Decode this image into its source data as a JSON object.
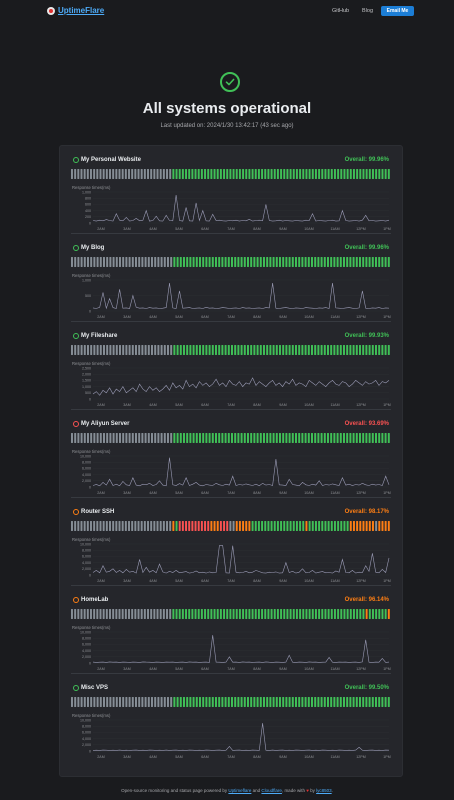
{
  "brand": {
    "name": "UptimeFlare"
  },
  "nav": {
    "github": "GitHub",
    "blog": "Blog",
    "email": "Email Me"
  },
  "hero": {
    "title": "All systems operational",
    "updated": "Last updated on: 2024/1/30 13:42:17 (43 sec ago)"
  },
  "chart_axis_label": "Response times(ms)",
  "time_ticks": [
    "2AM",
    "3AM",
    "4AM",
    "5AM",
    "6AM",
    "7AM",
    "8AM",
    "9AM",
    "10AM",
    "11AM",
    "12PM",
    "1PM"
  ],
  "colors": {
    "up": "#40c057",
    "down": "#fa5252",
    "warn": "#fd7e14",
    "unknown": "#868e96",
    "line": "#9a9bb5"
  },
  "monitors": [
    {
      "name": "My Personal Website",
      "overall": "Overall: 99.96%",
      "status": "up",
      "yticks": [
        "1,000",
        "800",
        "600",
        "400",
        "200",
        "0"
      ],
      "bars": "nnnnnnnnnnnnnnnnnnnnnnnnnnnnnnnnuuuuuuuuuuuuuuuuuuuuuuuuuuuuuuuuuuuuuuuuuuuuuuuuuuuuuuuuuuuuuuuuuuuuu",
      "response_times": [
        80,
        60,
        90,
        70,
        110,
        80,
        60,
        300,
        90,
        70,
        180,
        60,
        80,
        150,
        70,
        90,
        400,
        60,
        80,
        220,
        70,
        60,
        250,
        80,
        70,
        900,
        80,
        60,
        500,
        70,
        60,
        650,
        80,
        400,
        70,
        60,
        280,
        80,
        90,
        70,
        60,
        80,
        70,
        90,
        60,
        80,
        70,
        120,
        60,
        80,
        90,
        70,
        600,
        80,
        60,
        70,
        90,
        60,
        80,
        70,
        60,
        80,
        70,
        60,
        90,
        80,
        300,
        60,
        80,
        70,
        60,
        80,
        90,
        60,
        70,
        400,
        80,
        60,
        70,
        80,
        60,
        90,
        250,
        70,
        80,
        60,
        70,
        80,
        60,
        90
      ]
    },
    {
      "name": "My Blog",
      "overall": "Overall: 99.96%",
      "status": "up",
      "yticks": [
        "1,000",
        "500",
        "0"
      ],
      "bars": "nnnnnnnnnnnnnnnnnnnnnnnnnnnnnnnnuuuuuuuuuuuuuuuuuuuuuuuuuuuuuuuuuuuuuuuuuuuuuuuuuuuuuuuuuuuuuuuuuuuu",
      "response_times": [
        100,
        80,
        120,
        600,
        90,
        400,
        110,
        80,
        700,
        90,
        100,
        80,
        500,
        120,
        90,
        100,
        80,
        110,
        90,
        100,
        80,
        90,
        110,
        900,
        100,
        80,
        650,
        90,
        100,
        110,
        80,
        90,
        100,
        80,
        120,
        90,
        100,
        80,
        90,
        110,
        100,
        80,
        90,
        100,
        80,
        110,
        90,
        100,
        80,
        90,
        100,
        80,
        110,
        100,
        900,
        90,
        80,
        100,
        110,
        90,
        80,
        100,
        90,
        80,
        110,
        100,
        90,
        80,
        100,
        90,
        110,
        80,
        900,
        100,
        90,
        80,
        100,
        110,
        90,
        80,
        100,
        650,
        90,
        80,
        100,
        90,
        110,
        80,
        100,
        90
      ]
    },
    {
      "name": "My Fileshare",
      "overall": "Overall: 99.93%",
      "status": "up",
      "yticks": [
        "2,500",
        "2,000",
        "1,500",
        "1,000",
        "500",
        "0"
      ],
      "bars": "nnnnnnnnnnnnnnnnnnnnnnnnnnnnnnnnuuuuuuuuuuuuuuuuuuuuuuuuuuuuuuuuuuuuuuuuuuuuuuuuuuuuuuuuuuuuuuuuuuuu",
      "response_times": [
        400,
        600,
        300,
        700,
        500,
        900,
        400,
        800,
        600,
        1000,
        500,
        700,
        900,
        600,
        1200,
        800,
        600,
        1000,
        700,
        900,
        600,
        800,
        1100,
        700,
        1300,
        900,
        1100,
        800,
        1500,
        1000,
        1200,
        900,
        1400,
        1100,
        1300,
        1000,
        1200,
        1600,
        1100,
        1300,
        1000,
        1500,
        1200,
        1100,
        1400,
        1000,
        1300,
        1200,
        1700,
        1100,
        1400,
        1200,
        1000,
        1300,
        1500,
        1100,
        1300,
        1000,
        1400,
        1200,
        1600,
        1100,
        1300,
        1200,
        1000,
        1500,
        1300,
        1100,
        1400,
        1200,
        1000,
        1300,
        1500,
        1200,
        1100,
        1400,
        1300,
        1000,
        1200,
        1500,
        1300,
        1100,
        1400,
        1200,
        1300,
        1500,
        1100,
        1400,
        1300,
        1500
      ]
    },
    {
      "name": "My Aliyun Server",
      "overall": "Overall: 93.69%",
      "status": "down",
      "yticks": [
        "10,000",
        "8,000",
        "6,000",
        "4,000",
        "2,000",
        "0"
      ],
      "bars": "nnnnnnnnnnnnnnnnnnnnnnnnnnnnnnnnuuuuuuuuuuuuuuuuuuuuuuuuuuuuuuuuuuuuuuuuuuuuuuuuuuuuuuuuuuuuuuuuuuuu",
      "response_times": [
        500,
        800,
        400,
        1500,
        600,
        2500,
        500,
        900,
        400,
        1800,
        700,
        500,
        3000,
        600,
        400,
        900,
        700,
        1200,
        500,
        800,
        2000,
        600,
        400,
        9500,
        700,
        500,
        1100,
        600,
        3000,
        500,
        900,
        1500,
        600,
        400,
        800,
        600,
        500,
        1200,
        700,
        500,
        900,
        600,
        3500,
        500,
        800,
        600,
        1000,
        700,
        500,
        900,
        400,
        1200,
        600,
        800,
        500,
        9000,
        700,
        600,
        500,
        2500,
        800,
        600,
        400,
        1500,
        700,
        500,
        900,
        600,
        2000,
        500,
        800,
        600,
        1000,
        700,
        500,
        3000,
        600,
        900,
        500,
        800,
        600,
        1200,
        700,
        500,
        900,
        600,
        800,
        500,
        3500,
        700
      ]
    },
    {
      "name": "Router SSH",
      "overall": "Overall: 98.17%",
      "status": "warn",
      "yticks": [
        "10,000",
        "8,000",
        "6,000",
        "4,000",
        "2,000",
        "0"
      ],
      "bars": "nnnnnnnnnnnnnnnnnnnnnnnnnnnnnnnnouddddddddddooodddnnooooouuuuuuuuuuuuuuuuuouuuuuuuuuuuuuoooooooonoooo",
      "response_times": [
        800,
        1500,
        700,
        3000,
        900,
        1200,
        2000,
        800,
        1500,
        700,
        1800,
        900,
        1200,
        600,
        5000,
        800,
        2500,
        900,
        1500,
        700,
        3500,
        1000,
        600,
        1200,
        800,
        1500,
        700,
        900,
        1100,
        600,
        800,
        1300,
        700,
        900,
        600,
        1000,
        700,
        800,
        9500,
        9500,
        700,
        600,
        9500,
        900,
        700,
        800,
        1200,
        700,
        900,
        1500,
        1100,
        700,
        600,
        900,
        800,
        1000,
        600,
        700,
        4000,
        800,
        1200,
        600,
        900,
        2000,
        700,
        800,
        1500,
        600,
        900,
        1100,
        700,
        800,
        600,
        1300,
        900,
        5000,
        800,
        700,
        1500,
        600,
        900,
        800,
        3000,
        1200,
        7000,
        900,
        700,
        1800,
        800,
        5500
      ]
    },
    {
      "name": "HomeLab",
      "overall": "Overall: 96.14%",
      "status": "warn",
      "yticks": [
        "10,000",
        "8,000",
        "6,000",
        "4,000",
        "2,000",
        "0"
      ],
      "bars": "nnnnnnnnnnnnnnnnnnnnnnnnnnnnnnnnuuuuuuuuuuuuuuuuuuuuuuuuuuuuuuuuuuuuuuuuuuuuuuuuuuuuuuuuuuuuuouuuuuuo",
      "response_times": [
        300,
        200,
        250,
        300,
        200,
        350,
        250,
        300,
        200,
        300,
        250,
        200,
        300,
        250,
        200,
        350,
        300,
        250,
        200,
        300,
        250,
        200,
        300,
        250,
        300,
        200,
        250,
        300,
        200,
        350,
        250,
        300,
        200,
        250,
        300,
        200,
        9000,
        300,
        250,
        200,
        300,
        2000,
        250,
        300,
        200,
        350,
        250,
        300,
        200,
        250,
        300,
        200,
        350,
        250,
        200,
        300,
        250,
        200,
        300,
        2500,
        250,
        200,
        300,
        250,
        200,
        350,
        250,
        300,
        200,
        250,
        300,
        1800,
        250,
        200,
        300,
        250,
        300,
        200,
        250,
        300,
        200,
        350,
        7500,
        250,
        200,
        300,
        250,
        1500,
        200,
        300
      ]
    },
    {
      "name": "Misc VPS",
      "overall": "Overall: 99.50%",
      "status": "up",
      "yticks": [
        "10,000",
        "8,000",
        "6,000",
        "4,000",
        "2,000",
        "0"
      ],
      "bars": "nnnnnnnnnnnnnnnnnnnnnnnnnnnnnnnnuuuuuuuuuuuuuuuuuuuuuuuuuuuuuuuuuuuuuuuuuuuuuuuuuuuuuuuuuuuuuuuuuuuu",
      "response_times": [
        200,
        250,
        200,
        300,
        250,
        200,
        250,
        200,
        300,
        200,
        250,
        200,
        250,
        300,
        200,
        250,
        200,
        300,
        250,
        200,
        250,
        200,
        300,
        200,
        250,
        300,
        200,
        250,
        200,
        300,
        250,
        200,
        250,
        200,
        300,
        250,
        200,
        250,
        300,
        200,
        250,
        1500,
        200,
        250,
        300,
        200,
        250,
        200,
        300,
        250,
        200,
        9000,
        250,
        200,
        300,
        200,
        250,
        300,
        200,
        250,
        200,
        300,
        250,
        200,
        250,
        300,
        200,
        250,
        200,
        300,
        250,
        200,
        250,
        200,
        300,
        250,
        200,
        250,
        200,
        300,
        1200,
        250,
        200,
        250,
        300,
        200,
        250,
        200,
        300,
        250
      ]
    }
  ],
  "footer": {
    "prefix": "Open-source monitoring and status page powered by ",
    "link1": "Uptimeflare",
    "mid": " and ",
    "link2": "Cloudflare",
    "made": ", made with ",
    "heart": "♥",
    "by": " by ",
    "link3": "lyc8503",
    "end": "."
  }
}
